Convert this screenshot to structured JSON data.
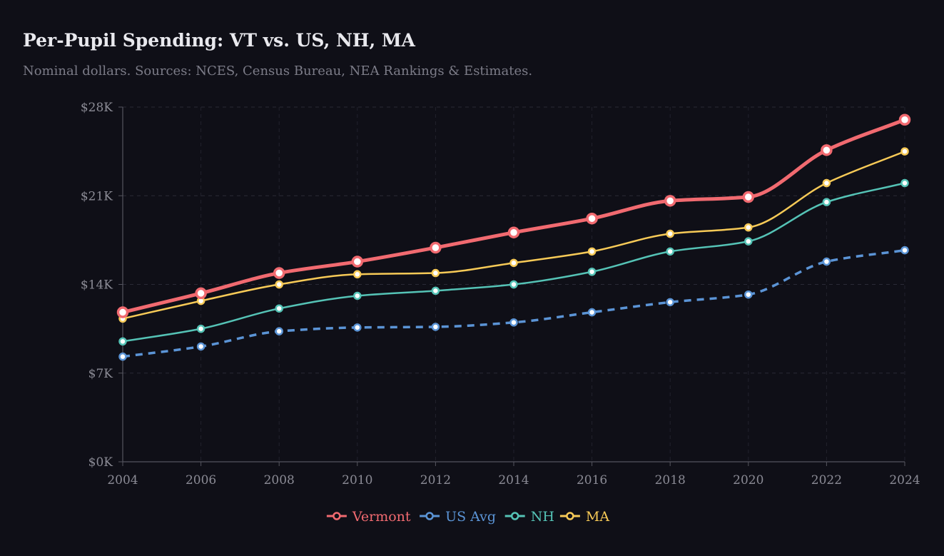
{
  "chart_data": {
    "type": "line",
    "title": "Per-Pupil Spending: VT vs. US, NH, MA",
    "subtitle": "Nominal dollars. Sources: NCES, Census Bureau, NEA Rankings & Estimates.",
    "xlabel": "",
    "ylabel": "",
    "x": [
      "2004",
      "2006",
      "2008",
      "2010",
      "2012",
      "2014",
      "2016",
      "2018",
      "2020",
      "2022",
      "2024"
    ],
    "xlim": [
      2004,
      2024
    ],
    "ylim": [
      0,
      28000
    ],
    "y_ticks": [
      0,
      7000,
      14000,
      21000,
      28000
    ],
    "y_tick_labels": [
      "$0K",
      "$7K",
      "$14K",
      "$21K",
      "$28K"
    ],
    "grid": true,
    "legend_position": "bottom-center",
    "series": [
      {
        "name": "Vermont",
        "color": "#f16a70",
        "dashed": false,
        "emphasis": true,
        "values": [
          11800,
          13300,
          14900,
          15800,
          16900,
          18100,
          19200,
          20600,
          20900,
          24600,
          27000
        ]
      },
      {
        "name": "US Avg",
        "color": "#5b94d6",
        "dashed": true,
        "emphasis": false,
        "values": [
          8300,
          9100,
          10300,
          10600,
          10650,
          11000,
          11800,
          12600,
          13200,
          15800,
          16700
        ]
      },
      {
        "name": "NH",
        "color": "#55c3b6",
        "dashed": false,
        "emphasis": false,
        "values": [
          9500,
          10500,
          12100,
          13100,
          13500,
          14000,
          15000,
          16600,
          17400,
          20500,
          22000
        ]
      },
      {
        "name": "MA",
        "color": "#f7ca57",
        "dashed": false,
        "emphasis": false,
        "values": [
          11300,
          12700,
          14000,
          14800,
          14900,
          15700,
          16600,
          18000,
          18500,
          22000,
          24500
        ]
      }
    ]
  }
}
